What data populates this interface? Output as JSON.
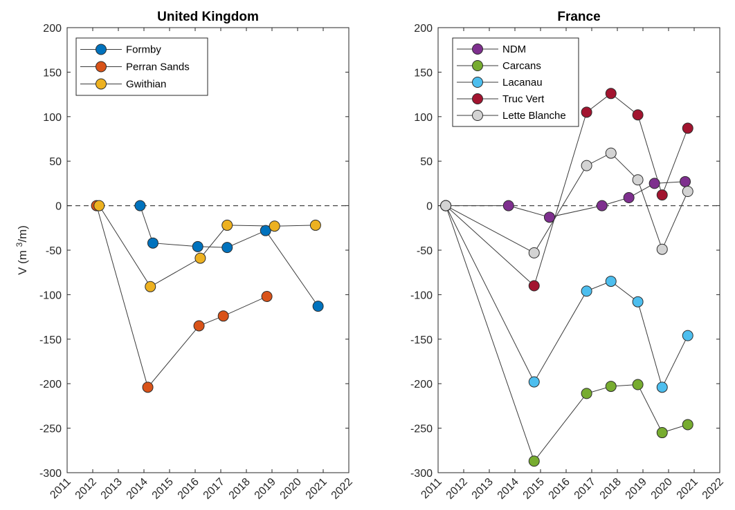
{
  "chart_data": [
    {
      "type": "line",
      "title": "United Kingdom",
      "xlabel": "",
      "ylabel": "V (m",
      "ylabel_sup": "3",
      "ylabel_tail": "/m)",
      "xlim": [
        2011,
        2022
      ],
      "ylim": [
        -300,
        200
      ],
      "xticks": [
        "2011",
        "2012",
        "2013",
        "2014",
        "2015",
        "2016",
        "2017",
        "2018",
        "2019",
        "2020",
        "2021",
        "2022"
      ],
      "yticks": [
        "200",
        "150",
        "100",
        "50",
        "0",
        "-50",
        "-100",
        "-150",
        "-200",
        "-250",
        "-300"
      ],
      "zero_line": true,
      "legend_position": "top-left",
      "series": [
        {
          "name": "Formby",
          "color": "#0072BD",
          "x": [
            2013.85,
            2014.35,
            2016.1,
            2017.25,
            2018.75,
            2020.8
          ],
          "y": [
            0,
            -42,
            -46,
            -47,
            -28,
            -113
          ]
        },
        {
          "name": "Perran Sands",
          "color": "#D95319",
          "x": [
            2012.15,
            2014.15,
            2016.15,
            2017.1,
            2018.8
          ],
          "y": [
            0,
            -204,
            -135,
            -124,
            -102
          ]
        },
        {
          "name": "Gwithian",
          "color": "#EDB120",
          "x": [
            2012.25,
            2014.25,
            2016.2,
            2017.25,
            2019.1,
            2020.7
          ],
          "y": [
            0,
            -91,
            -59,
            -22,
            -23,
            -22
          ]
        }
      ]
    },
    {
      "type": "line",
      "title": "France",
      "xlabel": "",
      "ylabel": "",
      "xlim": [
        2011,
        2022
      ],
      "ylim": [
        -300,
        200
      ],
      "xticks": [
        "2011",
        "2012",
        "2013",
        "2014",
        "2015",
        "2016",
        "2017",
        "2018",
        "2019",
        "2020",
        "2021",
        "2022"
      ],
      "yticks": [
        "200",
        "150",
        "100",
        "50",
        "0",
        "-50",
        "-100",
        "-150",
        "-200",
        "-250",
        "-300"
      ],
      "zero_line": true,
      "legend_position": "top-left",
      "series": [
        {
          "name": "NDM",
          "color": "#7E2F8E",
          "x": [
            2011.3,
            2013.75,
            2015.35,
            2017.4,
            2018.45,
            2019.45,
            2020.65
          ],
          "y": [
            0,
            0,
            -13,
            0,
            9,
            25,
            27
          ]
        },
        {
          "name": "Carcans",
          "color": "#77AC30",
          "x": [
            2011.3,
            2014.75,
            2016.8,
            2017.75,
            2018.8,
            2019.75,
            2020.75
          ],
          "y": [
            0,
            -287,
            -211,
            -203,
            -201,
            -255,
            -246
          ]
        },
        {
          "name": "Lacanau",
          "color": "#4DBEEE",
          "x": [
            2011.3,
            2014.75,
            2016.8,
            2017.75,
            2018.8,
            2019.75,
            2020.75
          ],
          "y": [
            0,
            -198,
            -96,
            -85,
            -108,
            -204,
            -146
          ]
        },
        {
          "name": "Truc Vert",
          "color": "#A2142F",
          "x": [
            2011.3,
            2014.75,
            2016.8,
            2017.75,
            2018.8,
            2019.75,
            2020.75
          ],
          "y": [
            0,
            -90,
            105,
            126,
            102,
            12,
            87
          ]
        },
        {
          "name": "Lette Blanche",
          "color": "#D3D3D3",
          "x": [
            2011.3,
            2014.75,
            2016.8,
            2017.75,
            2018.8,
            2019.75,
            2020.75
          ],
          "y": [
            0,
            -53,
            45,
            59,
            29,
            -49,
            16
          ]
        }
      ]
    }
  ]
}
